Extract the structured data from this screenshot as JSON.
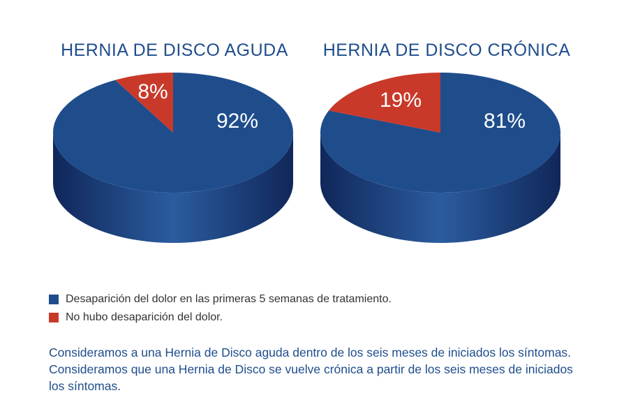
{
  "colors": {
    "primary": "#1f4d8c",
    "primary_side_dark": "#10275a",
    "primary_side_mid": "#2b5c9f",
    "secondary": "#c9392a",
    "title": "#1f4d8c",
    "label": "#ffffff"
  },
  "chart_data": [
    {
      "type": "pie",
      "title": "HERNIA DE DISCO AGUDA",
      "categories": [
        "Desaparición del dolor en las primeras 5 semanas de tratamiento.",
        "No hubo desaparición del dolor."
      ],
      "values": [
        92,
        8
      ],
      "labels": [
        "92%",
        "8%"
      ]
    },
    {
      "type": "pie",
      "title": "HERNIA DE DISCO CRÓNICA",
      "categories": [
        "Desaparición del dolor en las primeras 5 semanas de tratamiento.",
        "No hubo desaparición del dolor."
      ],
      "values": [
        81,
        19
      ],
      "labels": [
        "81%",
        "19%"
      ]
    }
  ],
  "legend": {
    "items": [
      {
        "label": "Desaparición del dolor en las primeras 5 semanas de tratamiento.",
        "color": "#1f4d8c"
      },
      {
        "label": "No hubo desaparición del dolor.",
        "color": "#c9392a"
      }
    ]
  },
  "notes": {
    "line1": "Consideramos a una Hernia de Disco aguda dentro de los seis meses de iniciados los síntomas.",
    "line2": "Consideramos que una Hernia de Disco se vuelve crónica a partir de los seis meses de iniciados los síntomas."
  }
}
